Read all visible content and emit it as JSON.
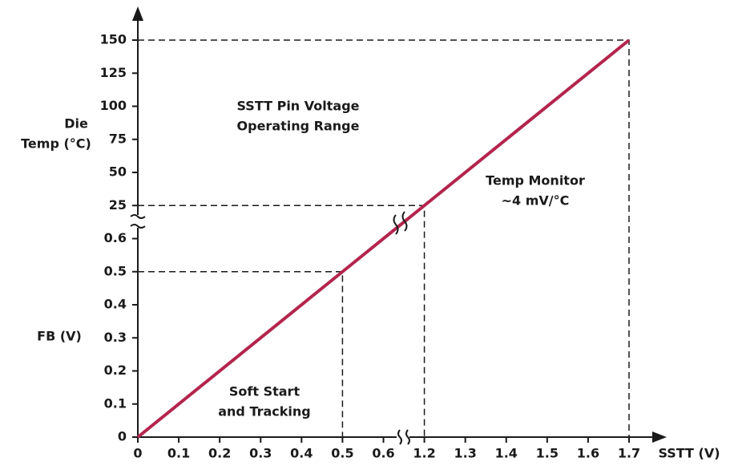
{
  "chart_data": {
    "type": "line",
    "x_label": "SSTT (V)",
    "y_label_lower": "FB (V)",
    "y_label_upper": [
      "Die",
      "Temp (°C)"
    ],
    "annotations": [
      [
        "SSTT Pin Voltage",
        "Operating Range"
      ],
      [
        "Temp Monitor",
        "~4 mV/°C"
      ],
      [
        "Soft Start",
        "and Tracking"
      ]
    ],
    "xlim": [
      0,
      1.7
    ],
    "ylim": [
      0,
      150
    ],
    "xticks": [
      0,
      0.1,
      0.2,
      0.3,
      0.4,
      0.5,
      0.6,
      1.2,
      1.3,
      1.4,
      1.5,
      1.6,
      1.7
    ],
    "yticks": [
      0,
      0.1,
      0.2,
      0.3,
      0.4,
      0.5,
      0.6,
      25,
      50,
      75,
      100,
      125,
      150
    ],
    "x": [
      0,
      0.5,
      1.2,
      1.7
    ],
    "series": [
      {
        "color": "#b3254c",
        "values": [
          0,
          0.5,
          25,
          150
        ]
      }
    ]
  }
}
